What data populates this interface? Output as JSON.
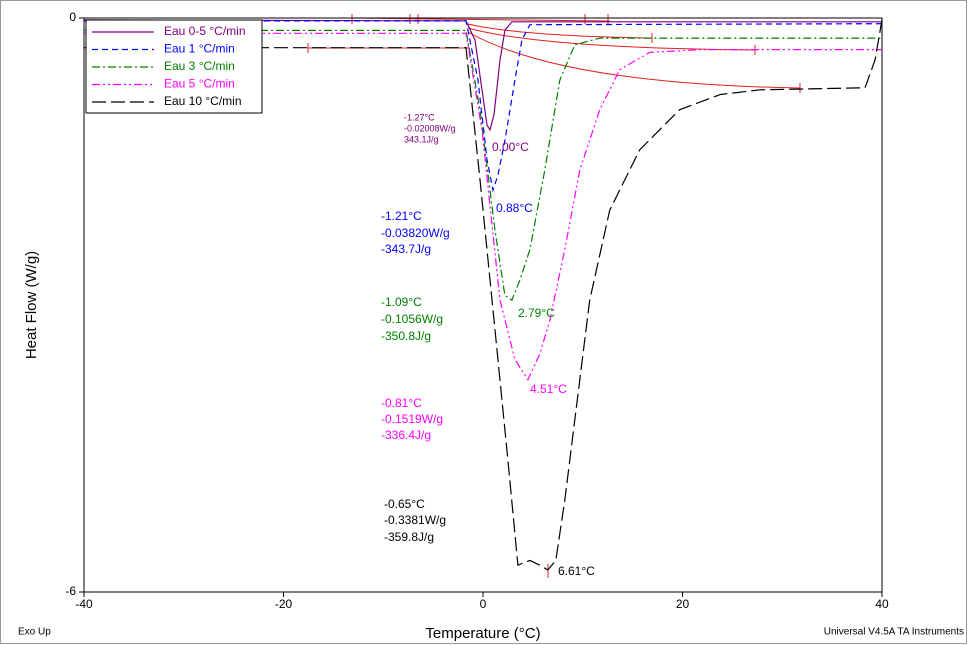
{
  "chart_data": {
    "type": "line",
    "xlabel": "Temperature (°C)",
    "ylabel": "Heat Flow (W/g)",
    "xlim": [
      -40,
      40
    ],
    "xticks": [
      -40,
      -20,
      0,
      20,
      40
    ],
    "ylim": [
      -6,
      0
    ],
    "yticks": [
      -6,
      0
    ],
    "legend": "upper left",
    "series": [
      {
        "name": "Eau 0-5 °C/min",
        "color": "#800080",
        "dash": "none",
        "x": [
          -40,
          -1.7,
          -0.8,
          -0.1,
          0.4,
          0.7,
          1.1,
          1.7,
          2.2,
          2.9,
          40
        ],
        "values": [
          -0.02,
          -0.03,
          -0.23,
          -0.75,
          -1.12,
          -1.17,
          -1.01,
          -0.44,
          -0.13,
          -0.04,
          -0.04
        ]
      },
      {
        "name": "Eau 1 °C/min",
        "color": "#0000ff",
        "dash": "6 4",
        "x": [
          -40,
          -1.7,
          -0.5,
          0.4,
          1.0,
          1.5,
          2.2,
          3.2,
          3.9,
          4.7,
          40
        ],
        "values": [
          -0.03,
          -0.03,
          -0.65,
          -1.48,
          -1.8,
          -1.64,
          -1.28,
          -0.65,
          -0.23,
          -0.07,
          -0.06
        ]
      },
      {
        "name": "Eau 3 °C/min",
        "color": "#008000",
        "dash": "8 3 2 3",
        "x": [
          -40,
          -1.7,
          -0.3,
          1.2,
          2.2,
          2.9,
          3.7,
          4.7,
          6.2,
          7.7,
          9.2,
          11.7,
          40
        ],
        "values": [
          -0.13,
          -0.13,
          -0.96,
          -2.22,
          -2.9,
          -2.95,
          -2.74,
          -2.42,
          -1.59,
          -0.65,
          -0.28,
          -0.21,
          -0.21
        ]
      },
      {
        "name": "Eau 5 °C/min",
        "color": "#ff00ff",
        "dash": "8 3 2 3 2 3",
        "x": [
          -40,
          -1.7,
          -0.1,
          1.7,
          3.2,
          4.5,
          5.7,
          6.7,
          8.2,
          9.7,
          11.7,
          13.7,
          16.7,
          21.8,
          40
        ],
        "values": [
          -0.16,
          -0.16,
          -1.17,
          -2.95,
          -3.57,
          -3.78,
          -3.51,
          -3.16,
          -2.42,
          -1.59,
          -0.96,
          -0.54,
          -0.36,
          -0.33,
          -0.33
        ]
      },
      {
        "name": "Eau 10 °C/min",
        "color": "#000000",
        "dash": "14 5",
        "x": [
          -40,
          -1.7,
          -0.3,
          1.2,
          2.5,
          3.5,
          4.7,
          5.7,
          6.5,
          7.3,
          8.2,
          9.2,
          10.7,
          12.7,
          15.7,
          19.7,
          23.8,
          27.8,
          38.3,
          39.3,
          40
        ],
        "values": [
          -0.31,
          -0.31,
          -1.69,
          -3.26,
          -4.62,
          -5.72,
          -5.67,
          -5.72,
          -5.77,
          -5.67,
          -5.04,
          -4.2,
          -2.95,
          -2.01,
          -1.38,
          -0.96,
          -0.8,
          -0.75,
          -0.73,
          -0.44,
          -0.02
        ]
      }
    ],
    "annotations": [
      {
        "text": "-1.27°C",
        "color": "#800080"
      },
      {
        "text": "-0.02008W/g",
        "color": "#800080"
      },
      {
        "text": "343.1J/g",
        "color": "#800080"
      },
      {
        "text": "0.00°C",
        "color": "#800080"
      },
      {
        "text": "-1.21°C",
        "color": "#0000ff"
      },
      {
        "text": "-0.03820W/g",
        "color": "#0000ff"
      },
      {
        "text": "-343.7J/g",
        "color": "#0000ff"
      },
      {
        "text": "0.88°C",
        "color": "#0000ff"
      },
      {
        "text": "-1.09°C",
        "color": "#008000"
      },
      {
        "text": "-0.1056W/g",
        "color": "#008000"
      },
      {
        "text": "-350.8J/g",
        "color": "#008000"
      },
      {
        "text": "2.79°C",
        "color": "#008000"
      },
      {
        "text": "-0.81°C",
        "color": "#ff00ff"
      },
      {
        "text": "-0.1519W/g",
        "color": "#ff00ff"
      },
      {
        "text": "-336.4J/g",
        "color": "#ff00ff"
      },
      {
        "text": "4.51°C",
        "color": "#ff00ff"
      },
      {
        "text": "-0.65°C",
        "color": "#000000"
      },
      {
        "text": "-0.3381W/g",
        "color": "#000000"
      },
      {
        "text": "-359.8J/g",
        "color": "#000000"
      },
      {
        "text": "6.61°C",
        "color": "#000000"
      }
    ],
    "footer_left": "Exo Up",
    "footer_right": "Universal V4.5A TA Instruments"
  }
}
